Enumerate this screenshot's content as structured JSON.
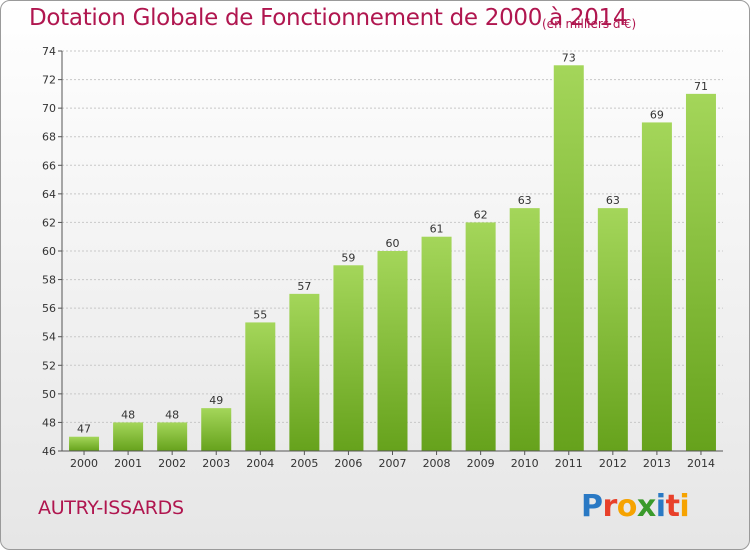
{
  "title": "Dotation Globale de Fonctionnement de 2000 à 2014",
  "subtitle": "(en milliers d'€)",
  "commune": "AUTRY-ISSARDS",
  "logo": {
    "text": "Proxiti",
    "letters": [
      "P",
      "r",
      "o",
      "x",
      "i",
      "t",
      "i"
    ],
    "colors": [
      "#2a79c4",
      "#e8402a",
      "#f6a300",
      "#3a9a2a",
      "#2a79c4",
      "#e8402a",
      "#f6a300"
    ]
  },
  "colors": {
    "title": "#b0164f",
    "bar_top": "#a4d65a",
    "bar_bottom": "#66a21c",
    "grid": "#c8c8c8",
    "axis": "#555555"
  },
  "chart_data": {
    "type": "bar",
    "categories": [
      "2000",
      "2001",
      "2002",
      "2003",
      "2004",
      "2005",
      "2006",
      "2007",
      "2008",
      "2009",
      "2010",
      "2011",
      "2012",
      "2013",
      "2014"
    ],
    "values": [
      47,
      48,
      48,
      49,
      55,
      57,
      59,
      60,
      61,
      62,
      63,
      73,
      63,
      69,
      71
    ],
    "data_labels": [
      "47",
      "48",
      "48",
      "49",
      "55",
      "57",
      "59",
      "60",
      "61",
      "62",
      "63",
      "73",
      "63",
      "69",
      "71"
    ],
    "title": "Dotation Globale de Fonctionnement de 2000 à 2014",
    "ylabel": "",
    "xlabel": "",
    "ylim": [
      46,
      74
    ],
    "yticks": [
      "46",
      "48",
      "50",
      "52",
      "54",
      "56",
      "58",
      "60",
      "62",
      "64",
      "66",
      "68",
      "70",
      "72",
      "74"
    ],
    "ytick_values": [
      46,
      48,
      50,
      52,
      54,
      56,
      58,
      60,
      62,
      64,
      66,
      68,
      70,
      72,
      74
    ],
    "grid": true
  }
}
